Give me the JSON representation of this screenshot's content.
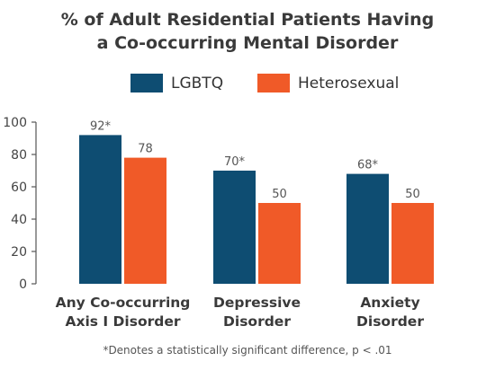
{
  "chart_data": {
    "type": "bar",
    "title_lines": [
      "% of Adult Residential Patients Having",
      "a Co-occurring Mental Disorder"
    ],
    "categories": [
      [
        "Any Co-occurring",
        "Axis I Disorder"
      ],
      [
        "Depressive",
        "Disorder"
      ],
      [
        "Anxiety",
        "Disorder"
      ]
    ],
    "series": [
      {
        "name": "LGBTQ",
        "color": "#0e4d72",
        "values": [
          92,
          70,
          68
        ],
        "labels": [
          "92*",
          "70*",
          "68*"
        ]
      },
      {
        "name": "Heterosexual",
        "color": "#f05a28",
        "values": [
          78,
          50,
          50
        ],
        "labels": [
          "78",
          "50",
          "50"
        ]
      }
    ],
    "ylim": [
      0,
      100
    ],
    "yticks": [
      0,
      20,
      40,
      60,
      80,
      100
    ],
    "grid": false,
    "legend_position": "top-center",
    "footnote": "*Denotes a statistically significant difference, p < .01"
  }
}
